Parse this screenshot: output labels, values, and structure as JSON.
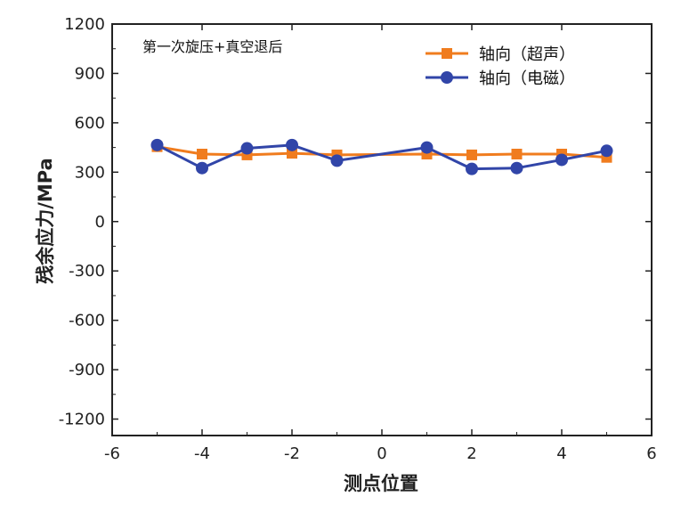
{
  "chart_data": {
    "type": "line",
    "title": "",
    "annotation": "第一次旋压+真空退后",
    "xlabel": "测点位置",
    "ylabel": "残余应力/MPa",
    "xlim": [
      -6,
      6
    ],
    "ylim": [
      -1300,
      1200
    ],
    "x_ticks": [
      -6,
      -4,
      -2,
      0,
      2,
      4,
      6
    ],
    "x_tick_labels": [
      "-6",
      "-4",
      "-2",
      "0",
      "2",
      "4",
      "6"
    ],
    "y_ticks": [
      -1200,
      -900,
      -600,
      -300,
      0,
      300,
      600,
      900,
      1200
    ],
    "y_tick_labels": [
      "-1200",
      "-900",
      "-600",
      "-300",
      "0",
      "300",
      "600",
      "900",
      "1200"
    ],
    "legend_position": "top-right",
    "grid": false,
    "series": [
      {
        "name": "轴向（超声）",
        "color": "#f07c1e",
        "marker": "square",
        "x": [
          -5,
          -4,
          -3,
          -2,
          -1,
          1,
          2,
          3,
          4,
          5
        ],
        "y": [
          455,
          410,
          405,
          415,
          405,
          410,
          405,
          410,
          410,
          390
        ]
      },
      {
        "name": "轴向（电磁）",
        "color": "#3145a8",
        "marker": "circle",
        "x": [
          -5,
          -4,
          -3,
          -2,
          -1,
          1,
          2,
          3,
          4,
          5
        ],
        "y": [
          465,
          325,
          445,
          465,
          370,
          450,
          320,
          325,
          375,
          430
        ]
      }
    ]
  }
}
